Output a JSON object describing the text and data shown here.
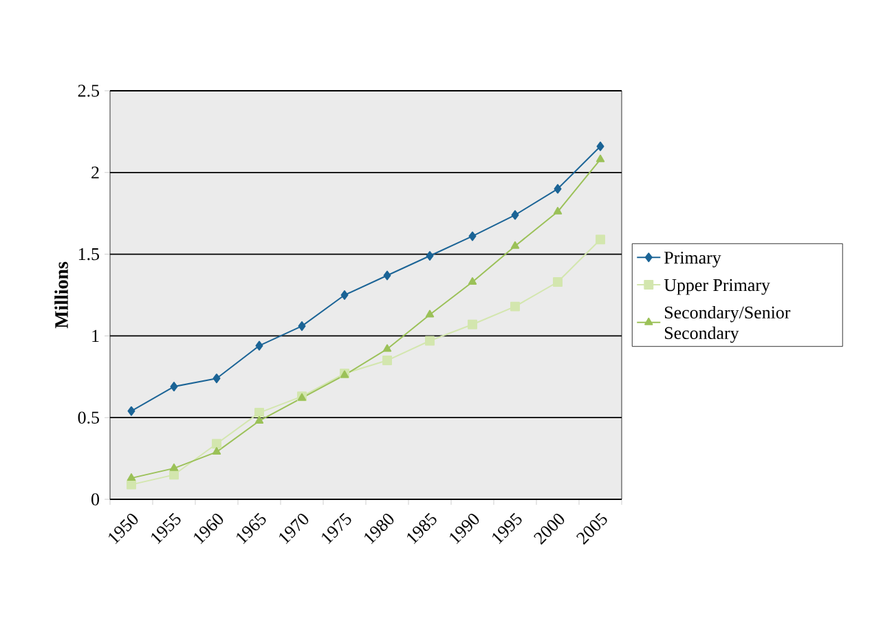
{
  "chart_data": {
    "type": "line",
    "ylabel": "Millions",
    "categories": [
      "1950",
      "1955",
      "1960",
      "1965",
      "1970",
      "1975",
      "1980",
      "1985",
      "1990",
      "1995",
      "2000",
      "2005"
    ],
    "series": [
      {
        "name": "Primary",
        "color": "#1b6496",
        "marker": "diamond",
        "values": [
          0.54,
          0.69,
          0.74,
          0.94,
          1.06,
          1.25,
          1.37,
          1.49,
          1.61,
          1.74,
          1.9,
          2.16
        ]
      },
      {
        "name": "Upper Primary",
        "color": "#d3e6ae",
        "marker": "square",
        "values": [
          0.09,
          0.15,
          0.34,
          0.53,
          0.63,
          0.77,
          0.85,
          0.97,
          1.07,
          1.18,
          1.33,
          1.59
        ]
      },
      {
        "name": "Secondary/Senior Secondary",
        "color": "#9bc158",
        "marker": "triangle",
        "values": [
          0.13,
          0.19,
          0.29,
          0.48,
          0.62,
          0.76,
          0.92,
          1.13,
          1.33,
          1.55,
          1.76,
          2.08
        ]
      }
    ],
    "ylim": [
      0,
      2.5
    ],
    "yticks": [
      0,
      0.5,
      1,
      1.5,
      2,
      2.5
    ],
    "grid": "y",
    "legend": "right"
  }
}
